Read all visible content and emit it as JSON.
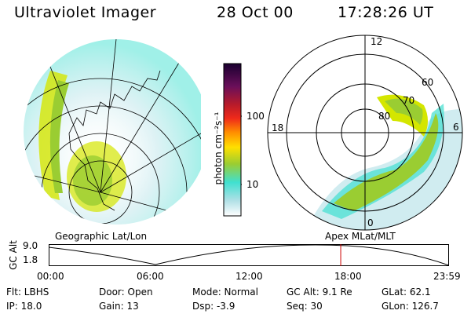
{
  "header": {
    "instrument": "Ultraviolet Imager",
    "date": "28 Oct 00",
    "time": "17:28:26 UT"
  },
  "colorbar": {
    "unit_label": "photon cm⁻²s⁻¹",
    "ticks": [
      "100",
      "10"
    ]
  },
  "polar": {
    "mlt_labels": {
      "top": "12",
      "left": "18",
      "right": "6",
      "bottom": "0"
    },
    "lat_labels": [
      "60",
      "70",
      "80"
    ]
  },
  "titles": {
    "left": "Geographic Lat/Lon",
    "right": "Apex MLat/MLT"
  },
  "timeline": {
    "axis_label": "GC Alt",
    "y_ticks": [
      "9.0",
      "1.8"
    ],
    "x_ticks": [
      "00:00",
      "06:00",
      "12:00",
      "18:00",
      "23:59"
    ],
    "marker_time_fraction": 0.7295,
    "marker_color": "#cc0000"
  },
  "info": {
    "row1": {
      "filter": "Flt: LBHS",
      "door": "Door: Open",
      "mode": "Mode: Normal",
      "gc_alt": "GC Alt: 9.1 Re",
      "glat": "GLat:  62.1"
    },
    "row2": {
      "ip": "IP: 18.0",
      "gain": "Gain: 13",
      "dsp": "Dsp:   -3.9",
      "seq": "Seq: 30",
      "glon": "GLon: 126.7"
    }
  },
  "colors": {
    "aurora_bright": "#9acd32",
    "aurora_mid": "#d4e600",
    "aurora_low": "#40e0d0",
    "aurora_faint": "#b0e0e6"
  }
}
